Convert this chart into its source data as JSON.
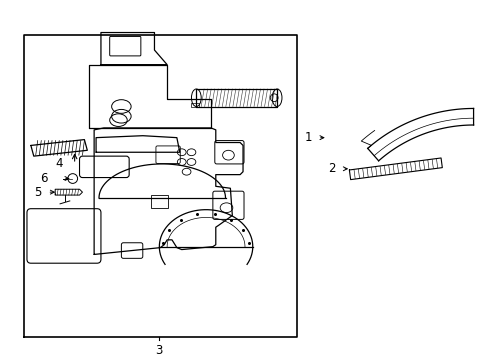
{
  "background_color": "#ffffff",
  "line_color": "#000000",
  "label_3": "3",
  "label_4": "4",
  "label_5": "5",
  "label_6": "6",
  "label_1": "1",
  "label_2": "2"
}
